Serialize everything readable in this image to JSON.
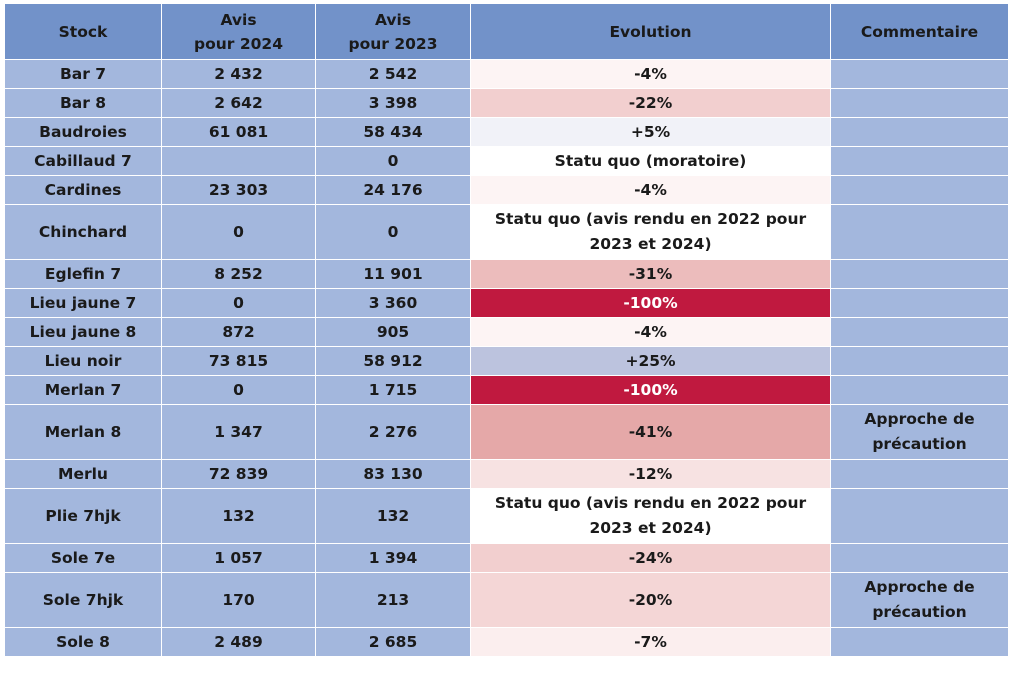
{
  "headers": {
    "stock": "Stock",
    "avis2024_line1": "Avis",
    "avis2024_line2": "pour 2024",
    "avis2023_line1": "Avis",
    "avis2023_line2": "pour 2023",
    "evolution": "Evolution",
    "commentaire": "Commentaire"
  },
  "rows": [
    {
      "stock": "Bar 7",
      "avis2024": "2 432",
      "avis2023": "2 542",
      "evolution": "-4%",
      "evolution_bg": "#fdf4f4",
      "evolution_color": "#1a1a1a",
      "commentaire": "",
      "tall": false
    },
    {
      "stock": "Bar 8",
      "avis2024": "2 642",
      "avis2023": "3 398",
      "evolution": "-22%",
      "evolution_bg": "#f2cfcf",
      "evolution_color": "#1a1a1a",
      "commentaire": "",
      "tall": false
    },
    {
      "stock": "Baudroies",
      "avis2024": "61 081",
      "avis2023": "58 434",
      "evolution": "+5%",
      "evolution_bg": "#f1f2f8",
      "evolution_color": "#1a1a1a",
      "commentaire": "",
      "tall": false
    },
    {
      "stock": "Cabillaud 7",
      "avis2024": "",
      "avis2023": "0",
      "evolution": "Statu quo (moratoire)",
      "evolution_bg": "#ffffff",
      "evolution_color": "#1a1a1a",
      "commentaire": "",
      "tall": false
    },
    {
      "stock": "Cardines",
      "avis2024": "23 303",
      "avis2023": "24 176",
      "evolution": "-4%",
      "evolution_bg": "#fdf4f4",
      "evolution_color": "#1a1a1a",
      "commentaire": "",
      "tall": false
    },
    {
      "stock": "Chinchard",
      "avis2024": "0",
      "avis2023": "0",
      "evolution": "Statu quo (avis rendu en 2022 pour 2023 et 2024)",
      "evolution_bg": "#ffffff",
      "evolution_color": "#1a1a1a",
      "commentaire": "",
      "tall": true
    },
    {
      "stock": "Eglefin 7",
      "avis2024": "8 252",
      "avis2023": "11 901",
      "evolution": "-31%",
      "evolution_bg": "#ecbcbc",
      "evolution_color": "#1a1a1a",
      "commentaire": "",
      "tall": false
    },
    {
      "stock": "Lieu jaune 7",
      "avis2024": "0",
      "avis2023": "3 360",
      "evolution": "-100%",
      "evolution_bg": "#c0193f",
      "evolution_color": "#ffffff",
      "commentaire": "",
      "tall": false
    },
    {
      "stock": "Lieu jaune 8",
      "avis2024": "872",
      "avis2023": "905",
      "evolution": "-4%",
      "evolution_bg": "#fdf4f4",
      "evolution_color": "#1a1a1a",
      "commentaire": "",
      "tall": false
    },
    {
      "stock": "Lieu noir",
      "avis2024": "73 815",
      "avis2023": "58 912",
      "evolution": "+25%",
      "evolution_bg": "#bcc3de",
      "evolution_color": "#1a1a1a",
      "commentaire": "",
      "tall": false
    },
    {
      "stock": "Merlan 7",
      "avis2024": "0",
      "avis2023": "1 715",
      "evolution": "-100%",
      "evolution_bg": "#c0193f",
      "evolution_color": "#ffffff",
      "commentaire": "",
      "tall": false
    },
    {
      "stock": "Merlan 8",
      "avis2024": "1 347",
      "avis2023": "2 276",
      "evolution": "-41%",
      "evolution_bg": "#e5a8a8",
      "evolution_color": "#1a1a1a",
      "commentaire": "Approche de précaution",
      "tall": true
    },
    {
      "stock": "Merlu",
      "avis2024": "72 839",
      "avis2023": "83 130",
      "evolution": "-12%",
      "evolution_bg": "#f7e2e2",
      "evolution_color": "#1a1a1a",
      "commentaire": "",
      "tall": false
    },
    {
      "stock": "Plie 7hjk",
      "avis2024": "132",
      "avis2023": "132",
      "evolution": "Statu quo (avis rendu en 2022 pour 2023 et 2024)",
      "evolution_bg": "#ffffff",
      "evolution_color": "#1a1a1a",
      "commentaire": "",
      "tall": true
    },
    {
      "stock": "Sole 7e",
      "avis2024": "1 057",
      "avis2023": "1 394",
      "evolution": "-24%",
      "evolution_bg": "#f2cfcf",
      "evolution_color": "#1a1a1a",
      "commentaire": "",
      "tall": false
    },
    {
      "stock": "Sole 7hjk",
      "avis2024": "170",
      "avis2023": "213",
      "evolution": "-20%",
      "evolution_bg": "#f4d6d6",
      "evolution_color": "#1a1a1a",
      "commentaire": "Approche de précaution",
      "tall": true
    },
    {
      "stock": "Sole 8",
      "avis2024": "2 489",
      "avis2023": "2 685",
      "evolution": "-7%",
      "evolution_bg": "#fbeeee",
      "evolution_color": "#1a1a1a",
      "commentaire": "",
      "tall": false
    }
  ]
}
